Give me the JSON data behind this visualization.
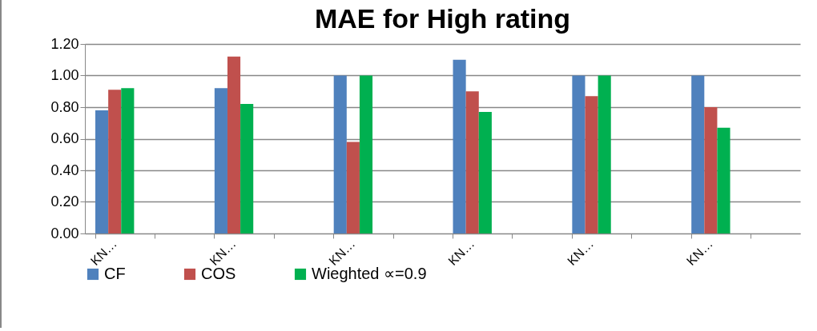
{
  "chart_data": {
    "type": "bar",
    "title": "MAE for High rating",
    "categories": [
      "KN…",
      null,
      "KN…",
      null,
      "KN…",
      null,
      "KN…",
      null,
      "KN…",
      null,
      "KN…",
      null
    ],
    "series": [
      {
        "name": "CF",
        "color": "#4f81bd",
        "values": [
          0.78,
          null,
          0.92,
          null,
          1.0,
          null,
          1.1,
          null,
          1.0,
          null,
          1.0,
          null
        ]
      },
      {
        "name": "COS",
        "color": "#c0504d",
        "values": [
          0.91,
          null,
          1.12,
          null,
          0.58,
          null,
          0.9,
          null,
          0.87,
          null,
          0.8,
          null
        ]
      },
      {
        "name": "Wieghted ∝=0.9",
        "color": "#00b050",
        "values": [
          0.92,
          null,
          0.82,
          null,
          1.0,
          null,
          0.77,
          null,
          1.0,
          null,
          0.67,
          null
        ]
      }
    ],
    "ylim": [
      0,
      1.2
    ],
    "yticks": [
      {
        "value": 0,
        "label": "0.00"
      },
      {
        "value": 0.2,
        "label": "0.20"
      },
      {
        "value": 0.4,
        "label": "0.40"
      },
      {
        "value": 0.6,
        "label": "0.60"
      },
      {
        "value": 0.8,
        "label": "0.80"
      },
      {
        "value": 1,
        "label": "1.00"
      },
      {
        "value": 1.2,
        "label": "1.20"
      }
    ],
    "grid": "y",
    "legend": "bottom"
  }
}
